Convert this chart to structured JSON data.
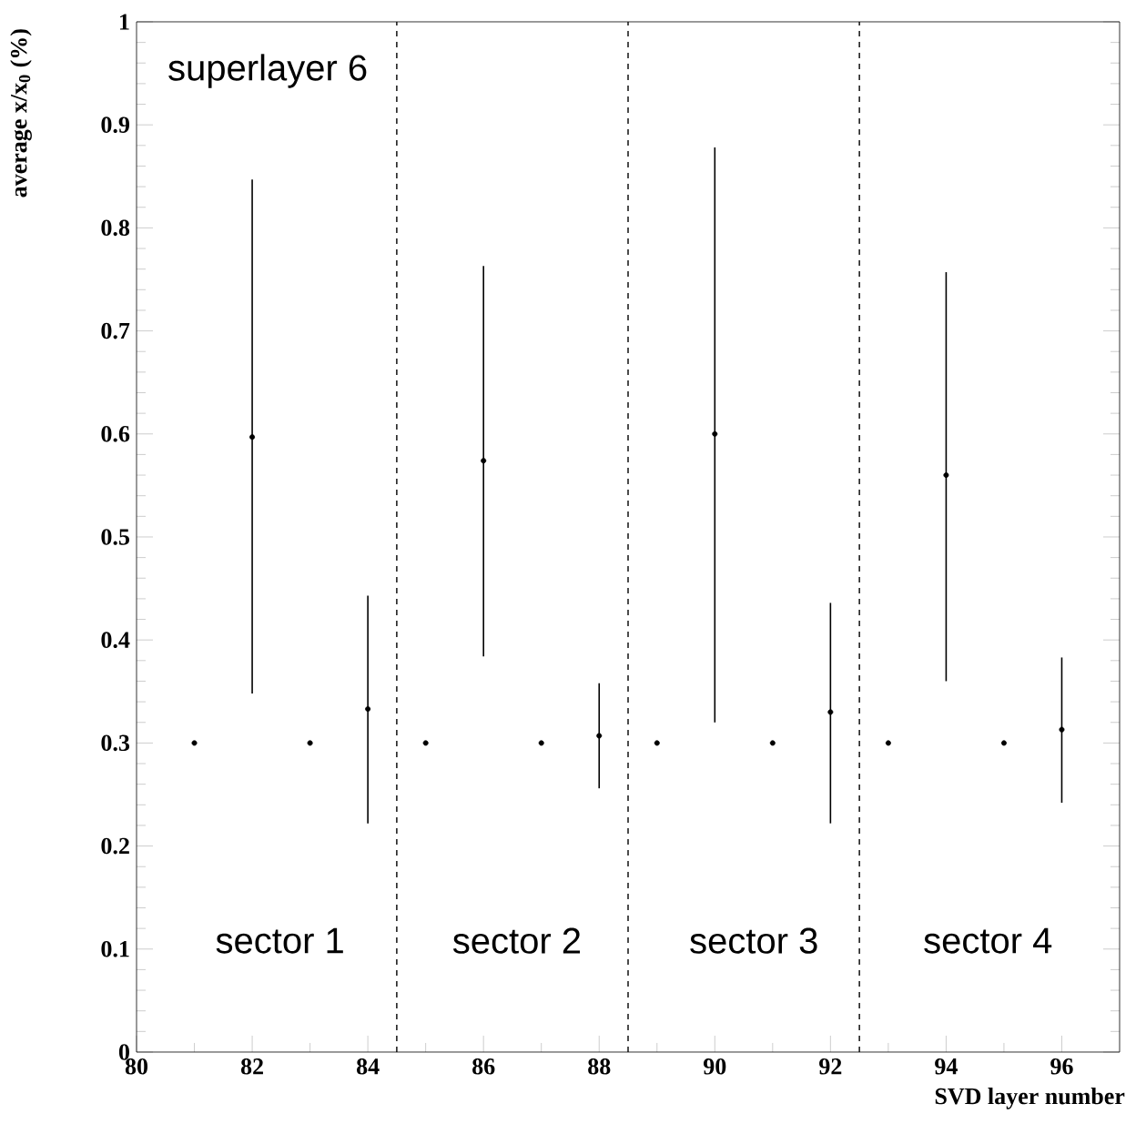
{
  "chart_data": {
    "type": "scatter",
    "xlabel": "SVD layer number",
    "ylabel": "average x/x$_{0}$ (%)",
    "x": [
      81,
      82,
      83,
      84,
      85,
      86,
      87,
      88,
      89,
      90,
      91,
      92,
      93,
      94,
      95,
      96
    ],
    "values": [
      0.3,
      0.597,
      0.3,
      0.333,
      0.3,
      0.574,
      0.3,
      0.307,
      0.3,
      0.6,
      0.3,
      0.33,
      0.3,
      0.56,
      0.3,
      0.313
    ],
    "errors": [
      null,
      [
        0.348,
        0.847
      ],
      null,
      [
        0.222,
        0.443
      ],
      null,
      [
        0.384,
        0.763
      ],
      null,
      [
        0.256,
        0.358
      ],
      null,
      [
        0.32,
        0.878
      ],
      null,
      [
        0.222,
        0.436
      ],
      null,
      [
        0.36,
        0.757
      ],
      null,
      [
        0.242,
        0.383
      ]
    ],
    "color": "#000000",
    "marker": "circle",
    "grid": false,
    "xlim": [
      80,
      97
    ],
    "xticks": [
      80,
      82,
      84,
      86,
      88,
      90,
      92,
      94,
      96
    ],
    "ylim": [
      0,
      1
    ],
    "yticks": [
      0,
      0.1,
      0.2,
      0.3,
      0.4,
      0.5,
      0.6,
      0.7,
      0.8,
      0.9,
      1
    ],
    "ref_lines": [
      {
        "axis": "x",
        "value": 84.5,
        "line_style": "dashed",
        "color": "#000000"
      },
      {
        "axis": "x",
        "value": 88.5,
        "line_style": "dashed",
        "color": "#000000"
      },
      {
        "axis": "x",
        "value": 92.5,
        "line_style": "dashed",
        "color": "#000000"
      }
    ],
    "annotations": [
      "superlayer 6",
      "sector 1",
      "sector 2",
      "sector 3",
      "sector 4"
    ]
  }
}
